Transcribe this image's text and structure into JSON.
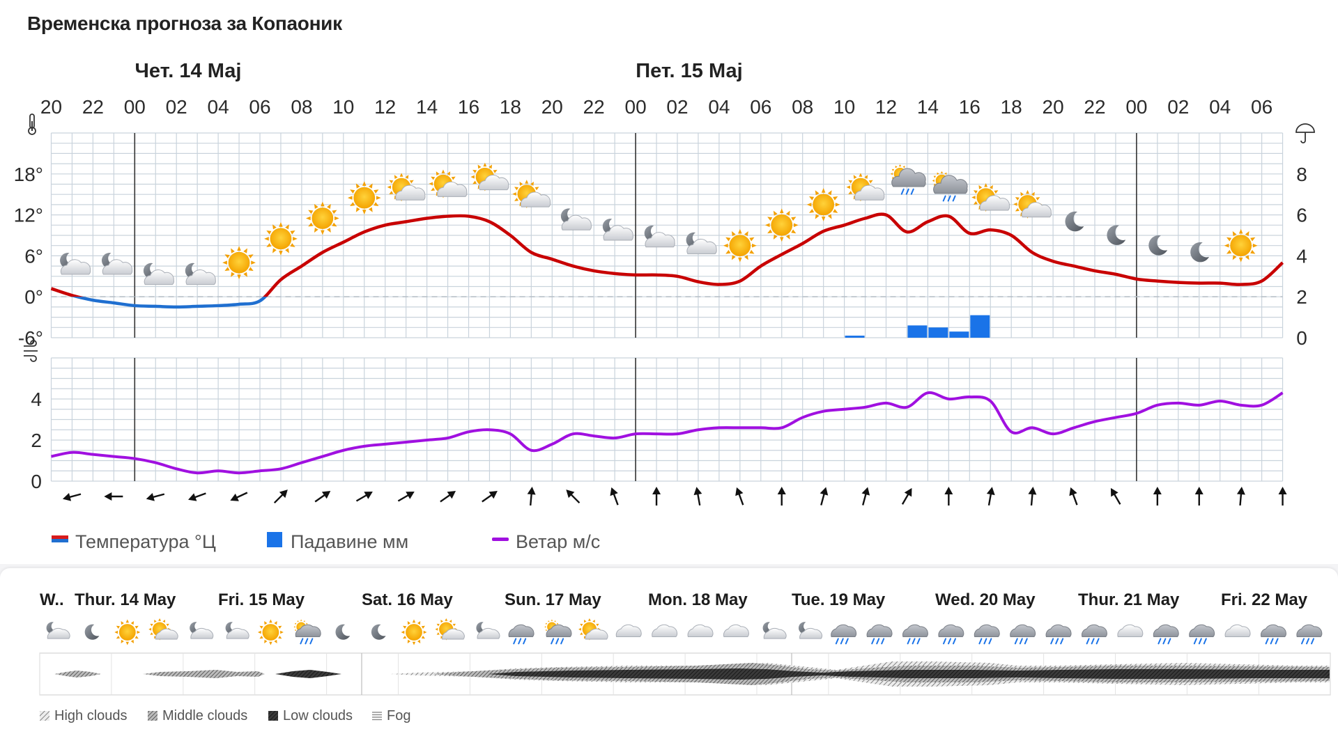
{
  "title": "Временска прогноза за Копаоник",
  "day_headers": [
    {
      "label": "Чет. 14 Мај",
      "col": 0
    },
    {
      "label": "Пет. 15 Мај",
      "col": 12
    }
  ],
  "hour_labels": [
    "20",
    "22",
    "00",
    "02",
    "04",
    "06",
    "08",
    "10",
    "12",
    "14",
    "16",
    "18",
    "20",
    "22",
    "00",
    "02",
    "04",
    "06",
    "08",
    "10",
    "12",
    "14",
    "16",
    "18",
    "20",
    "22",
    "00",
    "02",
    "04",
    "06"
  ],
  "temp_axis": {
    "ticks": [
      "18°",
      "12°",
      "6°",
      "0°",
      "-6°"
    ],
    "values": [
      18,
      12,
      6,
      0,
      -6
    ],
    "min": -6,
    "max": 24,
    "icon": "thermometer-icon"
  },
  "precip_axis": {
    "ticks": [
      "8",
      "6",
      "4",
      "2",
      "0"
    ],
    "values": [
      8,
      6,
      4,
      2,
      0
    ],
    "min": 0,
    "max": 10,
    "icon": "umbrella-icon"
  },
  "wind_axis": {
    "ticks": [
      "4",
      "2",
      "0"
    ],
    "values": [
      4,
      2,
      0
    ],
    "min": 0,
    "max": 6,
    "icon": "wind-icon"
  },
  "chart_data": [
    {
      "type": "line",
      "name": "Температура °Ц",
      "unit": "°C",
      "hours_from_start": [
        0,
        1,
        2,
        3,
        4,
        5,
        6,
        7,
        8,
        9,
        10,
        11,
        12,
        13,
        14,
        15,
        16,
        17,
        18,
        19,
        20,
        21,
        22,
        23,
        24,
        25,
        26,
        27,
        28,
        29,
        30,
        31,
        32,
        33,
        34,
        35,
        36,
        37,
        38,
        39,
        40,
        41,
        42,
        43,
        44,
        45,
        46,
        47,
        48,
        49,
        50,
        51,
        52,
        53,
        54,
        55,
        56,
        57,
        58,
        59
      ],
      "temperature": [
        1.2,
        0.2,
        -0.5,
        -0.9,
        -1.3,
        -1.4,
        -1.5,
        -1.4,
        -1.3,
        -1.1,
        -0.6,
        2.5,
        4.5,
        6.5,
        8,
        9.5,
        10.5,
        11,
        11.5,
        11.8,
        11.8,
        11,
        9,
        6.5,
        5.5,
        4.5,
        3.8,
        3.4,
        3.2,
        3.2,
        3,
        2.2,
        1.8,
        2.3,
        4.5,
        6.2,
        7.8,
        9.6,
        10.5,
        11.5,
        12,
        9.5,
        11,
        11.8,
        9.3,
        9.8,
        9,
        6.5,
        5.2,
        4.5,
        3.8,
        3.3,
        2.6,
        2.3,
        2.1,
        2,
        2,
        1.8,
        2.3,
        5
      ],
      "color_above_zero": "#c80000",
      "color_below_zero": "#1f6fd0"
    },
    {
      "type": "bar",
      "name": "Падавине мм",
      "unit": "mm",
      "hours_from_start": [
        38,
        41,
        42,
        43,
        44
      ],
      "values": [
        0.1,
        0.6,
        0.5,
        0.3,
        1.1
      ],
      "color": "#1a73e8"
    },
    {
      "type": "line",
      "name": "Ветар м/с",
      "unit": "m/s",
      "hours_from_start": [
        0,
        1,
        2,
        3,
        4,
        5,
        6,
        7,
        8,
        9,
        10,
        11,
        12,
        13,
        14,
        15,
        16,
        17,
        18,
        19,
        20,
        21,
        22,
        23,
        24,
        25,
        26,
        27,
        28,
        29,
        30,
        31,
        32,
        33,
        34,
        35,
        36,
        37,
        38,
        39,
        40,
        41,
        42,
        43,
        44,
        45,
        46,
        47,
        48,
        49,
        50,
        51,
        52,
        53,
        54,
        55,
        56,
        57,
        58,
        59
      ],
      "wind": [
        1.2,
        1.4,
        1.3,
        1.2,
        1.1,
        0.9,
        0.6,
        0.4,
        0.5,
        0.4,
        0.5,
        0.6,
        0.9,
        1.2,
        1.5,
        1.7,
        1.8,
        1.9,
        2,
        2.1,
        2.4,
        2.5,
        2.3,
        1.5,
        1.8,
        2.3,
        2.2,
        2.1,
        2.3,
        2.3,
        2.3,
        2.5,
        2.6,
        2.6,
        2.6,
        2.6,
        3.1,
        3.4,
        3.5,
        3.6,
        3.8,
        3.6,
        4.3,
        4,
        4.1,
        3.9,
        2.4,
        2.6,
        2.3,
        2.6,
        2.9,
        3.1,
        3.3,
        3.7,
        3.8,
        3.7,
        3.9,
        3.7,
        3.7,
        4.3
      ],
      "color": "#a010e0"
    }
  ],
  "condition_icons": [
    {
      "hour": 1,
      "temp": 4.5,
      "icon": "moon-cloud-icon"
    },
    {
      "hour": 3,
      "temp": 4.5,
      "icon": "moon-cloud-icon"
    },
    {
      "hour": 5,
      "temp": 3,
      "icon": "moon-cloud-icon"
    },
    {
      "hour": 7,
      "temp": 3,
      "icon": "moon-cloud-icon"
    },
    {
      "hour": 9,
      "temp": 5,
      "icon": "sun-icon"
    },
    {
      "hour": 11,
      "temp": 8.5,
      "icon": "sun-icon"
    },
    {
      "hour": 13,
      "temp": 11.5,
      "icon": "sun-icon"
    },
    {
      "hour": 15,
      "temp": 14.5,
      "icon": "sun-icon"
    },
    {
      "hour": 17,
      "temp": 15.5,
      "icon": "sun-cloud-icon"
    },
    {
      "hour": 19,
      "temp": 16,
      "icon": "sun-cloud-icon"
    },
    {
      "hour": 21,
      "temp": 17,
      "icon": "sun-cloud-icon"
    },
    {
      "hour": 23,
      "temp": 14.5,
      "icon": "sun-cloud-icon"
    },
    {
      "hour": 25,
      "temp": 11,
      "icon": "moon-cloud-icon"
    },
    {
      "hour": 27,
      "temp": 9.5,
      "icon": "moon-cloud-icon"
    },
    {
      "hour": 29,
      "temp": 8.5,
      "icon": "moon-cloud-icon"
    },
    {
      "hour": 31,
      "temp": 7.5,
      "icon": "moon-cloud-icon"
    },
    {
      "hour": 33,
      "temp": 7.5,
      "icon": "sun-icon"
    },
    {
      "hour": 35,
      "temp": 10.5,
      "icon": "sun-icon"
    },
    {
      "hour": 37,
      "temp": 13.5,
      "icon": "sun-icon"
    },
    {
      "hour": 39,
      "temp": 15.5,
      "icon": "sun-cloud-icon"
    },
    {
      "hour": 41,
      "temp": 17,
      "icon": "rain-sun-icon"
    },
    {
      "hour": 43,
      "temp": 16,
      "icon": "rain-sun-icon"
    },
    {
      "hour": 45,
      "temp": 14,
      "icon": "sun-cloud-icon"
    },
    {
      "hour": 47,
      "temp": 13,
      "icon": "sun-cloud-icon"
    },
    {
      "hour": 49,
      "temp": 11,
      "icon": "moon-icon"
    },
    {
      "hour": 51,
      "temp": 9,
      "icon": "moon-icon"
    },
    {
      "hour": 53,
      "temp": 7.5,
      "icon": "moon-icon"
    },
    {
      "hour": 55,
      "temp": 6.5,
      "icon": "moon-icon"
    },
    {
      "hour": 57,
      "temp": 7.5,
      "icon": "sun-icon"
    }
  ],
  "wind_arrows": [
    {
      "hour": 1,
      "deg": 255
    },
    {
      "hour": 3,
      "deg": 270
    },
    {
      "hour": 5,
      "deg": 255
    },
    {
      "hour": 7,
      "deg": 250
    },
    {
      "hour": 9,
      "deg": 245
    },
    {
      "hour": 11,
      "deg": 45
    },
    {
      "hour": 13,
      "deg": 55
    },
    {
      "hour": 15,
      "deg": 60
    },
    {
      "hour": 17,
      "deg": 60
    },
    {
      "hour": 19,
      "deg": 55
    },
    {
      "hour": 21,
      "deg": 55
    },
    {
      "hour": 23,
      "deg": 5
    },
    {
      "hour": 25,
      "deg": 315
    },
    {
      "hour": 27,
      "deg": 340
    },
    {
      "hour": 29,
      "deg": 0
    },
    {
      "hour": 31,
      "deg": 350
    },
    {
      "hour": 33,
      "deg": 340
    },
    {
      "hour": 35,
      "deg": 0
    },
    {
      "hour": 37,
      "deg": 15
    },
    {
      "hour": 39,
      "deg": 15
    },
    {
      "hour": 41,
      "deg": 30
    },
    {
      "hour": 43,
      "deg": 0
    },
    {
      "hour": 45,
      "deg": 10
    },
    {
      "hour": 47,
      "deg": 5
    },
    {
      "hour": 49,
      "deg": 340
    },
    {
      "hour": 51,
      "deg": 330
    },
    {
      "hour": 53,
      "deg": 0
    },
    {
      "hour": 55,
      "deg": 0
    },
    {
      "hour": 57,
      "deg": 5
    },
    {
      "hour": 59,
      "deg": 0
    }
  ],
  "legend": [
    {
      "label": "Температура °Ц",
      "marker": "line-dual",
      "color": "#d81b1b",
      "color2": "#1f6fd0"
    },
    {
      "label": "Падавине мм",
      "marker": "square",
      "color": "#1a73e8"
    },
    {
      "label": "Ветар м/с",
      "marker": "line",
      "color": "#a010e0"
    }
  ],
  "forecast_days": [
    "W..",
    "Thur. 14 May",
    "Fri. 15 May",
    "Sat. 16 May",
    "Sun. 17 May",
    "Mon. 18 May",
    "Tue. 19 May",
    "Wed. 20 May",
    "Thur. 21 May",
    "Fri. 22 May"
  ],
  "forecast_icons": [
    "moon-cloud-icon",
    "moon-icon",
    "sun-icon",
    "sun-cloud-icon",
    "moon-cloud-icon",
    "moon-cloud-icon",
    "sun-icon",
    "rain-sun-icon",
    "moon-icon",
    "moon-icon",
    "sun-icon",
    "sun-cloud-icon",
    "moon-cloud-icon",
    "rain-cloud-icon",
    "rain-sun-icon",
    "sun-cloud-icon",
    "cloud-icon",
    "cloud-icon",
    "cloud-icon",
    "cloud-icon",
    "moon-cloud-icon",
    "moon-cloud-icon",
    "rain-cloud-icon",
    "rain-cloud-icon",
    "rain-cloud-icon",
    "rain-cloud-icon",
    "rain-cloud-icon",
    "rain-cloud-icon",
    "rain-cloud-icon",
    "rain-cloud-icon",
    "cloud-icon",
    "rain-cloud-icon",
    "rain-cloud-icon",
    "cloud-icon",
    "rain-cloud-icon",
    "rain-cloud-icon"
  ],
  "cloud_legend": [
    {
      "label": "High clouds",
      "icon": "high-clouds-icon"
    },
    {
      "label": "Middle clouds",
      "icon": "middle-clouds-icon"
    },
    {
      "label": "Low clouds",
      "icon": "low-clouds-icon"
    },
    {
      "label": "Fog",
      "icon": "fog-icon"
    }
  ]
}
